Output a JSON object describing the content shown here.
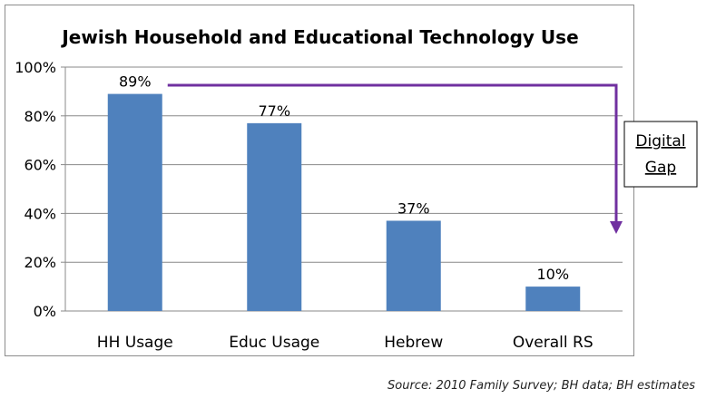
{
  "chart_data": {
    "type": "bar",
    "title": "Jewish Household and Educational Technology Use",
    "categories": [
      "HH Usage",
      "Educ Usage",
      "Hebrew",
      "Overall RS"
    ],
    "values": [
      89,
      77,
      37,
      10
    ],
    "data_labels": [
      "89%",
      "77%",
      "37%",
      "10%"
    ],
    "ylim": [
      0,
      100
    ],
    "yticks": [
      0,
      20,
      40,
      60,
      80,
      100
    ],
    "ytick_labels": [
      "0%",
      "20%",
      "40%",
      "60%",
      "80%",
      "100%"
    ],
    "xlabel": "",
    "ylabel": "",
    "grid": true,
    "legend": "none",
    "bar_color": "#4f81bd",
    "annotation": {
      "text_line1": "Digital",
      "text_line2": "Gap",
      "arrow_color": "#7030a0"
    }
  },
  "source": "Source: 2010 Family Survey; BH data; BH estimates"
}
